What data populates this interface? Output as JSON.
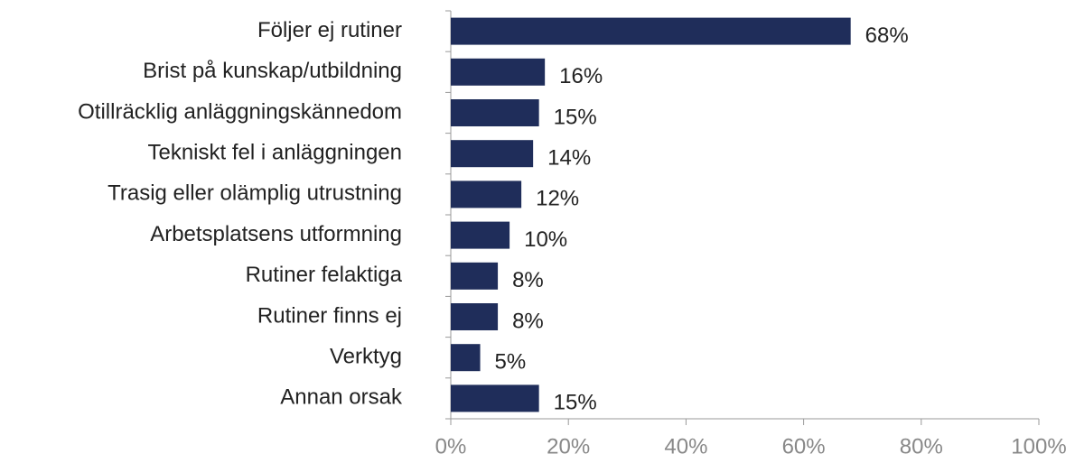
{
  "chart_data": {
    "type": "barh",
    "categories": [
      "Följer ej rutiner",
      "Brist på kunskap/utbildning",
      "Otillräcklig anläggningskännedom",
      "Tekniskt fel i anläggningen",
      "Trasig eller olämplig utrustning",
      "Arbetsplatsens utformning",
      "Rutiner felaktiga",
      "Rutiner finns ej",
      "Verktyg",
      "Annan orsak"
    ],
    "values": [
      68,
      16,
      15,
      14,
      12,
      10,
      8,
      8,
      5,
      15
    ],
    "value_labels": [
      "68%",
      "16%",
      "15%",
      "14%",
      "12%",
      "10%",
      "8%",
      "8%",
      "5%",
      "15%"
    ],
    "color": "#1f2d5a",
    "xlim": [
      0,
      100
    ],
    "xticks": [
      {
        "value": 0,
        "label": "0%"
      },
      {
        "value": 20,
        "label": "20%"
      },
      {
        "value": 40,
        "label": "40%"
      },
      {
        "value": 60,
        "label": "60%"
      },
      {
        "value": 80,
        "label": "80%"
      },
      {
        "value": 100,
        "label": "100%"
      }
    ]
  }
}
